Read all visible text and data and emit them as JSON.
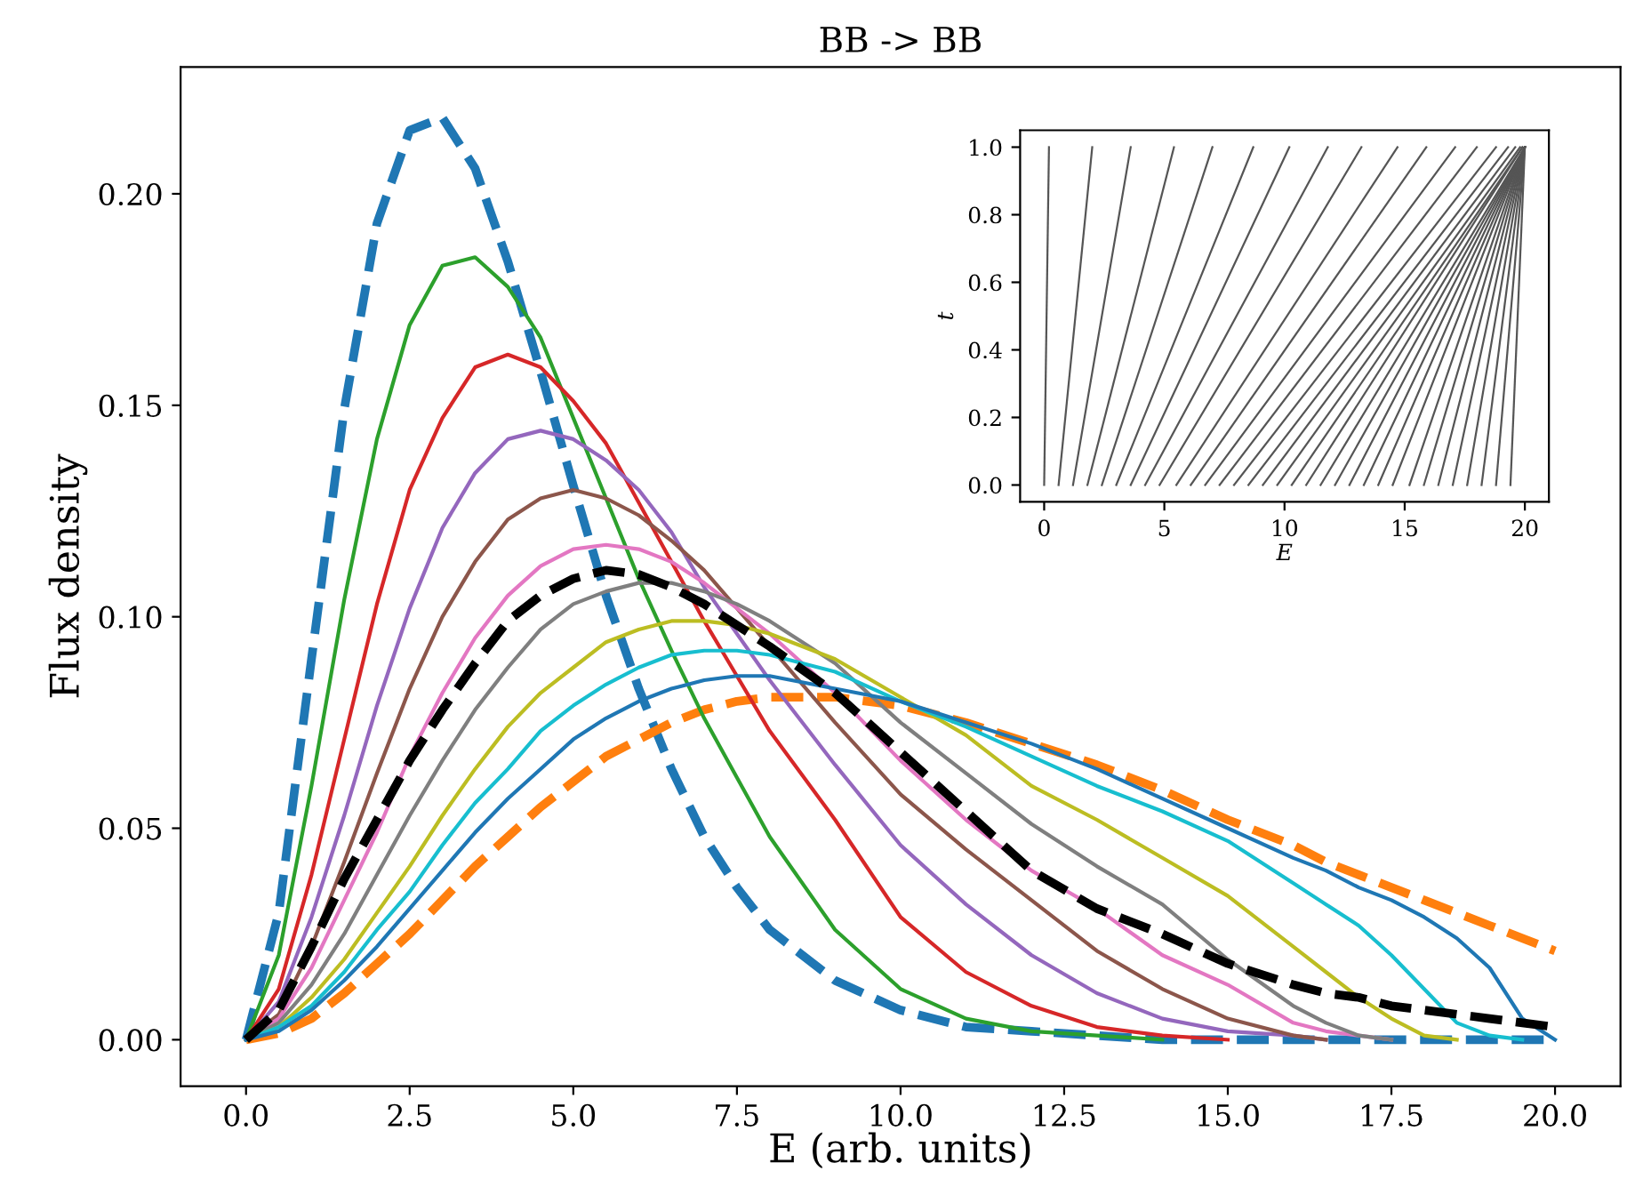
{
  "chart_data": [
    {
      "type": "line",
      "title": "BB -> BB",
      "xlabel": "E (arb. units)",
      "ylabel": "Flux density",
      "xlim": [
        -1,
        21
      ],
      "ylim": [
        -0.011,
        0.23
      ],
      "xticks": [
        {
          "value": 0,
          "label": "0.0"
        },
        {
          "value": 2.5,
          "label": "2.5"
        },
        {
          "value": 5,
          "label": "5.0"
        },
        {
          "value": 7.5,
          "label": "7.5"
        },
        {
          "value": 10,
          "label": "10.0"
        },
        {
          "value": 12.5,
          "label": "12.5"
        },
        {
          "value": 15,
          "label": "15.0"
        },
        {
          "value": 17.5,
          "label": "17.5"
        },
        {
          "value": 20,
          "label": "20.0"
        }
      ],
      "yticks": [
        {
          "value": 0,
          "label": "0.00"
        },
        {
          "value": 0.05,
          "label": "0.05"
        },
        {
          "value": 0.1,
          "label": "0.10"
        },
        {
          "value": 0.15,
          "label": "0.15"
        },
        {
          "value": 0.2,
          "label": "0.20"
        }
      ],
      "grid": false,
      "x": [
        0,
        0.5,
        1,
        1.5,
        2,
        2.5,
        3,
        3.5,
        4,
        4.5,
        5,
        5.5,
        6,
        6.5,
        7,
        7.5,
        8,
        9,
        10,
        11,
        12,
        13,
        14,
        15,
        16,
        16.5,
        17,
        17.5,
        18,
        18.5,
        19,
        19.5,
        20
      ],
      "series": [
        {
          "color": "#1f77b4",
          "line_style": "dashed",
          "values": [
            0,
            0.03,
            0.09,
            0.149,
            0.193,
            0.215,
            0.218,
            0.206,
            0.184,
            0.158,
            0.131,
            0.105,
            0.083,
            0.064,
            0.048,
            0.036,
            0.026,
            0.014,
            0.007,
            0.003,
            0.002,
            0.001,
            0,
            0,
            0,
            0,
            0,
            0,
            0,
            0,
            0,
            0,
            0
          ]
        },
        {
          "color": "#ff7f0e",
          "line_style": "dashed",
          "values": [
            0,
            0.0015,
            0.005,
            0.011,
            0.018,
            0.025,
            0.033,
            0.041,
            0.048,
            0.055,
            0.061,
            0.067,
            0.071,
            0.075,
            0.078,
            0.08,
            0.081,
            0.081,
            0.079,
            0.075,
            0.07,
            0.065,
            0.059,
            0.052,
            0.046,
            0.042,
            0.039,
            0.036,
            0.033,
            0.03,
            0.027,
            0.024,
            0.021
          ]
        },
        {
          "color": "#2ca02c",
          "line_style": "solid",
          "values": [
            0,
            0.02,
            0.06,
            0.104,
            0.142,
            0.169,
            0.183,
            0.185,
            0.178,
            0.166,
            0.147,
            0.128,
            0.109,
            0.092,
            0.076,
            0.062,
            0.048,
            0.026,
            0.012,
            0.005,
            0.002,
            0.001,
            0,
            null,
            null,
            null,
            null,
            null,
            null,
            null,
            null,
            null,
            null
          ]
        },
        {
          "color": "#d62728",
          "line_style": "solid",
          "values": [
            0,
            0.012,
            0.039,
            0.071,
            0.103,
            0.13,
            0.147,
            0.159,
            0.162,
            0.159,
            0.151,
            0.141,
            0.127,
            0.113,
            0.099,
            0.086,
            0.073,
            0.052,
            0.029,
            0.016,
            0.008,
            0.003,
            0.001,
            0,
            null,
            null,
            null,
            null,
            null,
            null,
            null,
            null,
            null
          ]
        },
        {
          "color": "#9467bd",
          "line_style": "solid",
          "values": [
            0,
            0.009,
            0.029,
            0.053,
            0.079,
            0.102,
            0.121,
            0.134,
            0.142,
            0.144,
            0.142,
            0.137,
            0.13,
            0.12,
            0.107,
            0.096,
            0.085,
            0.065,
            0.046,
            0.032,
            0.02,
            0.011,
            0.005,
            0.002,
            0.001,
            0,
            null,
            null,
            null,
            null,
            null,
            null,
            null
          ]
        },
        {
          "color": "#8c564b",
          "line_style": "solid",
          "values": [
            0,
            0.006,
            0.022,
            0.042,
            0.063,
            0.083,
            0.1,
            0.113,
            0.123,
            0.128,
            0.13,
            0.128,
            0.124,
            0.118,
            0.111,
            0.102,
            0.093,
            0.075,
            0.058,
            0.045,
            0.033,
            0.021,
            0.012,
            0.005,
            0.001,
            0,
            null,
            null,
            null,
            null,
            null,
            null,
            null
          ]
        },
        {
          "color": "#e377c2",
          "line_style": "solid",
          "values": [
            0,
            0.005,
            0.017,
            0.033,
            0.049,
            0.067,
            0.082,
            0.095,
            0.105,
            0.112,
            0.116,
            0.117,
            0.116,
            0.113,
            0.108,
            0.102,
            0.096,
            0.082,
            0.066,
            0.052,
            0.04,
            0.031,
            0.02,
            0.013,
            0.004,
            0.002,
            0.001,
            0,
            null,
            null,
            null,
            null,
            null
          ]
        },
        {
          "color": "#7f7f7f",
          "line_style": "solid",
          "values": [
            0,
            0.004,
            0.013,
            0.025,
            0.039,
            0.053,
            0.066,
            0.078,
            0.088,
            0.097,
            0.103,
            0.106,
            0.108,
            0.108,
            0.106,
            0.103,
            0.099,
            0.089,
            0.075,
            0.063,
            0.051,
            0.041,
            0.032,
            0.019,
            0.008,
            0.004,
            0.001,
            0,
            null,
            null,
            null,
            null,
            null
          ]
        },
        {
          "color": "#bcbd22",
          "line_style": "solid",
          "values": [
            0,
            0.003,
            0.01,
            0.019,
            0.03,
            0.041,
            0.053,
            0.064,
            0.074,
            0.082,
            0.088,
            0.094,
            0.097,
            0.099,
            0.099,
            0.098,
            0.096,
            0.09,
            0.081,
            0.072,
            0.06,
            0.052,
            0.043,
            0.034,
            0.022,
            0.016,
            0.01,
            0.005,
            0.001,
            0,
            null,
            null,
            null
          ]
        },
        {
          "color": "#17becf",
          "line_style": "solid",
          "values": [
            0,
            0.003,
            0.008,
            0.016,
            0.026,
            0.035,
            0.046,
            0.056,
            0.064,
            0.073,
            0.079,
            0.084,
            0.088,
            0.091,
            0.092,
            0.092,
            0.091,
            0.087,
            0.08,
            0.074,
            0.067,
            0.06,
            0.054,
            0.047,
            0.037,
            0.032,
            0.027,
            0.02,
            0.012,
            0.004,
            0.001,
            0,
            null
          ]
        },
        {
          "color": "#1f77b4",
          "line_style": "solid",
          "values": [
            0,
            0.002,
            0.007,
            0.014,
            0.022,
            0.031,
            0.04,
            0.049,
            0.057,
            0.064,
            0.071,
            0.076,
            0.08,
            0.083,
            0.085,
            0.086,
            0.086,
            0.083,
            0.08,
            0.075,
            0.07,
            0.064,
            0.057,
            0.05,
            0.043,
            0.04,
            0.036,
            0.033,
            0.029,
            0.024,
            0.017,
            0.005,
            0
          ]
        },
        {
          "color": "#000000",
          "line_style": "dashed",
          "values": [
            0,
            0.007,
            0.022,
            0.038,
            0.052,
            0.066,
            0.078,
            0.089,
            0.099,
            0.105,
            0.109,
            0.111,
            0.11,
            0.107,
            0.103,
            0.098,
            0.093,
            0.082,
            0.068,
            0.054,
            0.04,
            0.031,
            0.025,
            0.018,
            0.013,
            0.011,
            0.01,
            0.008,
            0.007,
            0.006,
            0.005,
            0.004,
            0.003
          ]
        }
      ]
    },
    {
      "type": "line",
      "xlabel": "E",
      "ylabel": "t",
      "xlim": [
        -1,
        21
      ],
      "ylim": [
        -0.05,
        1.05
      ],
      "xticks": [
        0,
        5,
        10,
        15,
        20
      ],
      "yticks": [
        {
          "value": 0,
          "label": "0.0"
        },
        {
          "value": 0.2,
          "label": "0.2"
        },
        {
          "value": 0.4,
          "label": "0.4"
        },
        {
          "value": 0.6,
          "label": "0.6"
        },
        {
          "value": 0.8,
          "label": "0.8"
        },
        {
          "value": 1,
          "label": "1.0"
        }
      ],
      "grid": false,
      "series": [
        {
          "color": "#555555",
          "x": [
            0.0,
            0.2
          ],
          "values": [
            0,
            1
          ]
        },
        {
          "color": "#555555",
          "x": [
            0.6,
            2.0
          ],
          "values": [
            0,
            1
          ]
        },
        {
          "color": "#555555",
          "x": [
            1.2,
            3.6
          ],
          "values": [
            0,
            1
          ]
        },
        {
          "color": "#555555",
          "x": [
            1.8,
            5.4
          ],
          "values": [
            0,
            1
          ]
        },
        {
          "color": "#555555",
          "x": [
            2.4,
            7.0
          ],
          "values": [
            0,
            1
          ]
        },
        {
          "color": "#555555",
          "x": [
            3.0,
            8.7
          ],
          "values": [
            0,
            1
          ]
        },
        {
          "color": "#555555",
          "x": [
            3.6,
            10.2
          ],
          "values": [
            0,
            1
          ]
        },
        {
          "color": "#555555",
          "x": [
            4.2,
            11.8
          ],
          "values": [
            0,
            1
          ]
        },
        {
          "color": "#555555",
          "x": [
            4.8,
            13.2
          ],
          "values": [
            0,
            1
          ]
        },
        {
          "color": "#555555",
          "x": [
            5.5,
            14.7
          ],
          "values": [
            0,
            1
          ]
        },
        {
          "color": "#555555",
          "x": [
            6.1,
            15.9
          ],
          "values": [
            0,
            1
          ]
        },
        {
          "color": "#555555",
          "x": [
            6.7,
            17.1
          ],
          "values": [
            0,
            1
          ]
        },
        {
          "color": "#555555",
          "x": [
            7.3,
            18.0
          ],
          "values": [
            0,
            1
          ]
        },
        {
          "color": "#555555",
          "x": [
            7.9,
            18.8
          ],
          "values": [
            0,
            1
          ]
        },
        {
          "color": "#555555",
          "x": [
            8.5,
            19.3
          ],
          "values": [
            0,
            1
          ]
        },
        {
          "color": "#555555",
          "x": [
            9.1,
            19.6
          ],
          "values": [
            0,
            1
          ]
        },
        {
          "color": "#555555",
          "x": [
            9.7,
            19.8
          ],
          "values": [
            0,
            1
          ]
        },
        {
          "color": "#555555",
          "x": [
            10.3,
            19.9
          ],
          "values": [
            0,
            1
          ]
        },
        {
          "color": "#555555",
          "x": [
            10.9,
            19.9
          ],
          "values": [
            0,
            1
          ]
        },
        {
          "color": "#555555",
          "x": [
            11.5,
            20.0
          ],
          "values": [
            0,
            1
          ]
        },
        {
          "color": "#555555",
          "x": [
            12.1,
            20.0
          ],
          "values": [
            0,
            1
          ]
        },
        {
          "color": "#555555",
          "x": [
            12.7,
            20.0
          ],
          "values": [
            0,
            1
          ]
        },
        {
          "color": "#555555",
          "x": [
            13.3,
            20.0
          ],
          "values": [
            0,
            1
          ]
        },
        {
          "color": "#555555",
          "x": [
            13.9,
            20.0
          ],
          "values": [
            0,
            1
          ]
        },
        {
          "color": "#555555",
          "x": [
            14.5,
            20.0
          ],
          "values": [
            0,
            1
          ]
        },
        {
          "color": "#555555",
          "x": [
            15.2,
            20.0
          ],
          "values": [
            0,
            1
          ]
        },
        {
          "color": "#555555",
          "x": [
            15.8,
            20.0
          ],
          "values": [
            0,
            1
          ]
        },
        {
          "color": "#555555",
          "x": [
            16.4,
            20.0
          ],
          "values": [
            0,
            1
          ]
        },
        {
          "color": "#555555",
          "x": [
            17.0,
            20.0
          ],
          "values": [
            0,
            1
          ]
        },
        {
          "color": "#555555",
          "x": [
            17.6,
            20.0
          ],
          "values": [
            0,
            1
          ]
        },
        {
          "color": "#555555",
          "x": [
            18.2,
            20.0
          ],
          "values": [
            0,
            1
          ]
        },
        {
          "color": "#555555",
          "x": [
            18.8,
            20.0
          ],
          "values": [
            0,
            1
          ]
        },
        {
          "color": "#555555",
          "x": [
            19.4,
            20.0
          ],
          "values": [
            0,
            1
          ]
        }
      ]
    }
  ]
}
